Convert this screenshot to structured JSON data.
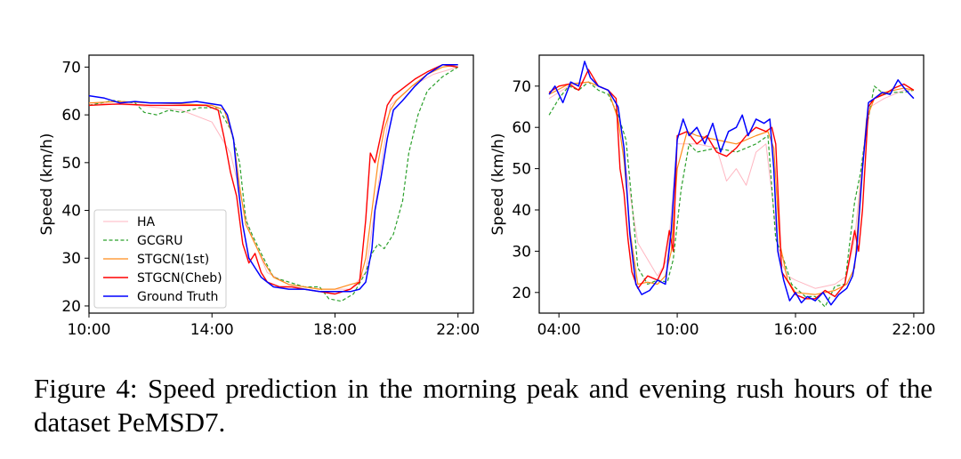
{
  "caption": "Figure 4: Speed prediction in the morning peak and evening rush hours of the dataset PeMSD7.",
  "legend_labels": [
    "HA",
    "GCGRU",
    "STGCN(1st)",
    "STGCN(Cheb)",
    "Ground Truth"
  ],
  "colors": {
    "HA": "#ffb6c1",
    "GCGRU": "#2ca02c",
    "STGCN(1st)": "#ff8c1a",
    "STGCN(Cheb)": "#ff0000",
    "Ground Truth": "#0000ff"
  },
  "chart_data": [
    {
      "type": "line",
      "title": "",
      "xlabel": "",
      "ylabel": "Speed (km/h)",
      "xlim": [
        10.0,
        22.5
      ],
      "ylim": [
        18.5,
        72.5
      ],
      "xticks": [
        10,
        14,
        18,
        22
      ],
      "xtick_labels": [
        "10:00",
        "14:00",
        "18:00",
        "22:00"
      ],
      "yticks": [
        20,
        30,
        40,
        50,
        60,
        70
      ],
      "ytick_labels": [
        "20",
        "30",
        "40",
        "50",
        "60",
        "70"
      ],
      "legend": "lower-left",
      "series": [
        {
          "name": "HA",
          "x": [
            10.0,
            11.5,
            13.0,
            14.0,
            14.6,
            15.2,
            15.8,
            16.5,
            17.5,
            18.5,
            19.0,
            19.4,
            19.8,
            20.5,
            21.2,
            22.0
          ],
          "y": [
            62.5,
            62.0,
            61.0,
            58.5,
            52.0,
            36.0,
            27.0,
            24.5,
            23.5,
            23.5,
            27.0,
            45.0,
            62.0,
            66.0,
            68.5,
            70.0
          ]
        },
        {
          "name": "GCGRU",
          "x": [
            10.0,
            10.8,
            11.5,
            11.8,
            12.2,
            12.6,
            13.0,
            13.6,
            14.2,
            14.6,
            14.9,
            15.1,
            15.3,
            15.6,
            16.0,
            16.5,
            17.0,
            17.5,
            17.8,
            18.2,
            18.6,
            19.0,
            19.2,
            19.4,
            19.6,
            19.9,
            20.2,
            20.4,
            20.7,
            21.0,
            21.5,
            22.0
          ],
          "y": [
            62.0,
            63.0,
            62.5,
            60.5,
            60.0,
            61.0,
            60.5,
            61.5,
            61.5,
            57.0,
            50.0,
            38.0,
            35.0,
            31.0,
            26.0,
            25.0,
            24.0,
            24.0,
            21.5,
            21.0,
            22.5,
            27.0,
            31.0,
            33.0,
            32.0,
            35.0,
            42.0,
            52.0,
            60.0,
            65.0,
            68.0,
            70.0
          ]
        },
        {
          "name": "STGCN(1st)",
          "x": [
            10.0,
            11.0,
            12.0,
            13.0,
            14.0,
            14.4,
            14.7,
            14.9,
            15.1,
            15.4,
            15.7,
            16.0,
            16.5,
            17.0,
            17.5,
            18.0,
            18.5,
            18.8,
            19.0,
            19.2,
            19.4,
            19.6,
            19.8,
            20.0,
            20.5,
            21.0,
            21.5,
            22.0
          ],
          "y": [
            62.5,
            62.8,
            62.5,
            62.3,
            62.0,
            61.0,
            55.0,
            45.0,
            37.0,
            33.0,
            29.0,
            26.0,
            24.5,
            24.0,
            23.5,
            23.5,
            24.5,
            25.0,
            30.0,
            40.0,
            50.0,
            57.0,
            61.0,
            63.0,
            66.0,
            68.5,
            70.0,
            70.5
          ]
        },
        {
          "name": "STGCN(Cheb)",
          "x": [
            10.0,
            11.0,
            12.0,
            13.0,
            13.8,
            14.2,
            14.4,
            14.6,
            14.8,
            15.0,
            15.2,
            15.4,
            15.6,
            15.8,
            16.2,
            16.6,
            17.0,
            17.5,
            18.0,
            18.5,
            18.8,
            19.0,
            19.15,
            19.3,
            19.5,
            19.7,
            19.9,
            20.2,
            20.6,
            21.0,
            21.5,
            22.0
          ],
          "y": [
            62.0,
            62.3,
            62.0,
            62.0,
            62.0,
            61.0,
            55.0,
            48.0,
            43.0,
            33.0,
            29.0,
            31.0,
            27.0,
            25.0,
            24.0,
            24.0,
            23.5,
            23.0,
            22.5,
            23.5,
            25.0,
            38.0,
            52.0,
            50.0,
            56.0,
            62.0,
            64.0,
            65.5,
            67.5,
            69.0,
            70.5,
            70.0
          ]
        },
        {
          "name": "Ground Truth",
          "x": [
            10.0,
            10.5,
            11.0,
            11.5,
            12.0,
            13.0,
            13.5,
            14.0,
            14.3,
            14.5,
            14.7,
            14.85,
            15.0,
            15.2,
            15.4,
            15.6,
            15.8,
            16.0,
            16.5,
            17.0,
            17.5,
            18.0,
            18.5,
            18.8,
            19.0,
            19.2,
            19.3,
            19.5,
            19.7,
            19.9,
            20.2,
            20.6,
            21.0,
            21.5,
            22.0
          ],
          "y": [
            64.0,
            63.5,
            62.5,
            62.8,
            62.5,
            62.5,
            62.8,
            62.3,
            62.0,
            60.0,
            55.0,
            45.0,
            37.0,
            30.0,
            28.0,
            26.0,
            25.0,
            24.0,
            23.5,
            23.5,
            23.0,
            23.0,
            23.0,
            23.5,
            25.0,
            32.0,
            40.0,
            47.0,
            55.0,
            61.0,
            63.0,
            66.0,
            68.5,
            70.5,
            70.5
          ]
        }
      ]
    },
    {
      "type": "line",
      "title": "",
      "xlabel": "",
      "ylabel": "Speed (km/h)",
      "xlim": [
        3.0,
        22.5
      ],
      "ylim": [
        15.0,
        77.5
      ],
      "xticks": [
        4,
        10,
        16,
        22
      ],
      "xtick_labels": [
        "04:00",
        "10:00",
        "16:00",
        "22:00"
      ],
      "yticks": [
        20,
        30,
        40,
        50,
        60,
        70
      ],
      "ytick_labels": [
        "20",
        "30",
        "40",
        "50",
        "60",
        "70"
      ],
      "legend": "none",
      "series": [
        {
          "name": "HA",
          "x": [
            3.5,
            4.5,
            5.5,
            6.5,
            7.0,
            7.5,
            8.0,
            9.0,
            9.5,
            10.0,
            11.0,
            12.0,
            12.5,
            13.0,
            13.5,
            14.0,
            14.5,
            14.8,
            15.2,
            15.6,
            16.0,
            17.0,
            18.0,
            18.6,
            19.0,
            19.4,
            19.8,
            20.5,
            21.5,
            22.0
          ],
          "y": [
            67.0,
            70.0,
            71.0,
            69.0,
            62.0,
            47.0,
            32.0,
            24.0,
            28.0,
            56.0,
            56.0,
            55.0,
            47.0,
            50.0,
            46.0,
            54.0,
            56.0,
            44.0,
            28.0,
            24.0,
            23.0,
            21.0,
            22.0,
            24.0,
            33.0,
            52.0,
            65.0,
            67.0,
            69.0,
            69.0
          ]
        },
        {
          "name": "GCGRU",
          "x": [
            3.5,
            4.0,
            4.5,
            5.0,
            5.5,
            6.0,
            6.5,
            7.0,
            7.4,
            7.7,
            8.0,
            8.5,
            9.0,
            9.5,
            9.8,
            10.2,
            10.6,
            11.0,
            12.0,
            13.0,
            13.5,
            14.0,
            14.6,
            15.0,
            15.4,
            15.8,
            16.5,
            17.0,
            17.5,
            18.0,
            18.5,
            19.0,
            19.3,
            19.6,
            20.0,
            20.5,
            21.0,
            21.5,
            22.0
          ],
          "y": [
            63.0,
            67.0,
            70.0,
            69.0,
            71.0,
            69.0,
            68.0,
            63.0,
            57.0,
            42.0,
            26.0,
            22.0,
            23.0,
            22.5,
            28.0,
            45.0,
            56.0,
            54.0,
            55.0,
            54.0,
            55.0,
            56.0,
            58.0,
            33.0,
            28.0,
            22.0,
            19.0,
            19.0,
            16.5,
            21.5,
            22.0,
            42.0,
            49.0,
            60.0,
            70.0,
            68.0,
            68.5,
            68.5,
            69.0
          ]
        },
        {
          "name": "STGCN(1st)",
          "x": [
            3.5,
            4.5,
            5.5,
            6.5,
            7.0,
            7.3,
            7.6,
            8.0,
            8.5,
            9.0,
            9.4,
            9.7,
            10.0,
            10.5,
            11.0,
            12.0,
            13.0,
            14.0,
            14.6,
            14.9,
            15.2,
            15.6,
            16.0,
            17.0,
            17.5,
            18.0,
            18.6,
            19.0,
            19.3,
            19.6,
            20.0,
            20.5,
            21.0,
            21.5,
            22.0
          ],
          "y": [
            68.0,
            70.5,
            71.0,
            69.0,
            62.0,
            52.0,
            35.0,
            22.0,
            22.5,
            22.0,
            24.0,
            30.0,
            50.0,
            59.0,
            58.0,
            57.0,
            56.0,
            58.0,
            59.0,
            55.0,
            32.0,
            23.0,
            20.0,
            19.5,
            20.0,
            20.5,
            22.0,
            26.0,
            45.0,
            62.0,
            67.0,
            68.5,
            69.0,
            69.5,
            69.0
          ]
        },
        {
          "name": "STGCN(Cheb)",
          "x": [
            3.5,
            4.0,
            4.5,
            5.0,
            5.5,
            6.0,
            6.5,
            6.9,
            7.1,
            7.3,
            7.5,
            7.7,
            8.0,
            8.5,
            9.0,
            9.3,
            9.6,
            9.8,
            10.0,
            10.5,
            11.0,
            11.5,
            12.0,
            12.5,
            13.0,
            13.5,
            14.0,
            14.5,
            14.8,
            15.0,
            15.3,
            15.7,
            16.0,
            16.5,
            17.0,
            17.5,
            18.0,
            18.5,
            19.0,
            19.2,
            19.4,
            19.7,
            20.0,
            20.5,
            21.0,
            21.5,
            22.0
          ],
          "y": [
            68.5,
            70.0,
            70.5,
            69.0,
            74.0,
            70.0,
            69.0,
            67.0,
            50.0,
            44.0,
            33.0,
            25.0,
            21.0,
            24.0,
            23.0,
            26.0,
            35.0,
            30.0,
            58.0,
            59.0,
            56.0,
            58.0,
            54.0,
            53.0,
            55.0,
            58.0,
            60.0,
            59.0,
            60.0,
            56.0,
            25.0,
            22.0,
            19.5,
            18.5,
            18.5,
            20.5,
            19.0,
            22.0,
            35.0,
            30.0,
            40.0,
            65.0,
            67.0,
            68.0,
            69.5,
            70.5,
            69.0
          ]
        },
        {
          "name": "Ground Truth",
          "x": [
            3.5,
            3.8,
            4.2,
            4.6,
            5.0,
            5.3,
            5.6,
            6.0,
            6.5,
            7.0,
            7.3,
            7.6,
            7.9,
            8.2,
            8.6,
            9.0,
            9.4,
            9.7,
            10.0,
            10.3,
            10.6,
            11.0,
            11.4,
            11.8,
            12.2,
            12.6,
            13.0,
            13.3,
            13.6,
            14.0,
            14.4,
            14.7,
            14.9,
            15.1,
            15.4,
            15.7,
            16.0,
            16.3,
            16.6,
            17.0,
            17.4,
            17.8,
            18.2,
            18.6,
            18.9,
            19.1,
            19.4,
            19.7,
            20.0,
            20.4,
            20.8,
            21.2,
            21.6,
            22.0
          ],
          "y": [
            68.0,
            70.0,
            66.0,
            71.0,
            70.0,
            76.0,
            72.0,
            70.0,
            69.0,
            65.0,
            55.0,
            34.0,
            22.0,
            19.5,
            20.5,
            23.0,
            22.0,
            35.0,
            57.0,
            62.0,
            58.0,
            60.0,
            56.0,
            61.0,
            54.0,
            59.0,
            60.0,
            63.0,
            58.0,
            62.0,
            61.0,
            62.0,
            50.0,
            30.0,
            23.0,
            18.0,
            20.0,
            17.5,
            19.0,
            18.0,
            20.0,
            17.0,
            19.5,
            21.0,
            24.0,
            30.0,
            50.0,
            66.0,
            67.0,
            68.5,
            68.0,
            71.5,
            69.0,
            67.0
          ]
        }
      ]
    }
  ]
}
